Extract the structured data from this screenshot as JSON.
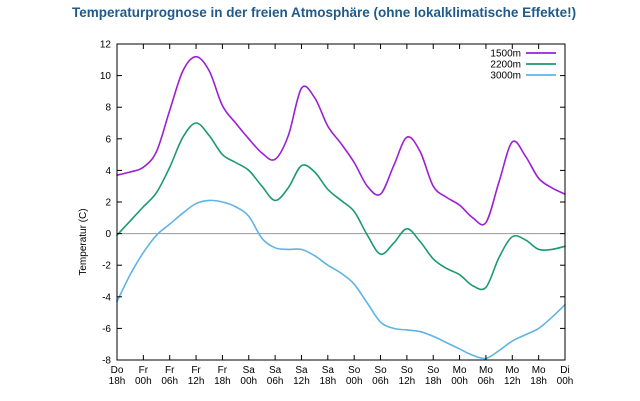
{
  "chart_data": {
    "type": "line",
    "title": "Temperaturprognose in der freien Atmosphäre (ohne lokalklimatische Effekte!)",
    "xlabel": "",
    "ylabel": "Temperatur (C)",
    "ylim": [
      -8,
      12
    ],
    "yticks": [
      -8,
      -6,
      -4,
      -2,
      0,
      2,
      4,
      6,
      8,
      10,
      12
    ],
    "grid": false,
    "legend_position": "top-right",
    "x_ticks": [
      {
        "day": "Do",
        "hour": "18h"
      },
      {
        "day": "Fr",
        "hour": "00h"
      },
      {
        "day": "Fr",
        "hour": "06h"
      },
      {
        "day": "Fr",
        "hour": "12h"
      },
      {
        "day": "Fr",
        "hour": "18h"
      },
      {
        "day": "Sa",
        "hour": "00h"
      },
      {
        "day": "Sa",
        "hour": "06h"
      },
      {
        "day": "Sa",
        "hour": "12h"
      },
      {
        "day": "Sa",
        "hour": "18h"
      },
      {
        "day": "So",
        "hour": "00h"
      },
      {
        "day": "So",
        "hour": "06h"
      },
      {
        "day": "So",
        "hour": "12h"
      },
      {
        "day": "So",
        "hour": "18h"
      },
      {
        "day": "Mo",
        "hour": "00h"
      },
      {
        "day": "Mo",
        "hour": "06h"
      },
      {
        "day": "Mo",
        "hour": "12h"
      },
      {
        "day": "Mo",
        "hour": "18h"
      },
      {
        "day": "Di",
        "hour": "00h"
      }
    ],
    "series": [
      {
        "name": "1500m",
        "color": "#9c1fd6",
        "values": [
          [
            0,
            3.7
          ],
          [
            0.5,
            3.9
          ],
          [
            1,
            4.2
          ],
          [
            1.5,
            5.2
          ],
          [
            2,
            7.8
          ],
          [
            2.5,
            10.3
          ],
          [
            3,
            11.2
          ],
          [
            3.5,
            10.3
          ],
          [
            4,
            8.1
          ],
          [
            4.5,
            7.0
          ],
          [
            5,
            6.0
          ],
          [
            5.5,
            5.1
          ],
          [
            6,
            4.7
          ],
          [
            6.5,
            6.2
          ],
          [
            7,
            9.2
          ],
          [
            7.5,
            8.6
          ],
          [
            8,
            6.8
          ],
          [
            8.5,
            5.7
          ],
          [
            9,
            4.5
          ],
          [
            9.5,
            3.0
          ],
          [
            10,
            2.5
          ],
          [
            10.5,
            4.3
          ],
          [
            11,
            6.1
          ],
          [
            11.5,
            5.2
          ],
          [
            12,
            3.0
          ],
          [
            12.5,
            2.3
          ],
          [
            13,
            1.8
          ],
          [
            13.5,
            1.0
          ],
          [
            14,
            0.7
          ],
          [
            14.5,
            3.3
          ],
          [
            15,
            5.8
          ],
          [
            15.5,
            4.9
          ],
          [
            16,
            3.5
          ],
          [
            16.5,
            2.9
          ],
          [
            17,
            2.5
          ]
        ]
      },
      {
        "name": "2200m",
        "color": "#1a9a6e",
        "values": [
          [
            0,
            -0.1
          ],
          [
            0.5,
            0.8
          ],
          [
            1,
            1.7
          ],
          [
            1.5,
            2.6
          ],
          [
            2,
            4.2
          ],
          [
            2.5,
            6.1
          ],
          [
            3,
            7.0
          ],
          [
            3.5,
            6.2
          ],
          [
            4,
            5.0
          ],
          [
            4.5,
            4.5
          ],
          [
            5,
            4.0
          ],
          [
            5.5,
            3.0
          ],
          [
            6,
            2.1
          ],
          [
            6.5,
            2.9
          ],
          [
            7,
            4.3
          ],
          [
            7.5,
            3.9
          ],
          [
            8,
            2.8
          ],
          [
            8.5,
            2.1
          ],
          [
            9,
            1.4
          ],
          [
            9.5,
            -0.1
          ],
          [
            10,
            -1.3
          ],
          [
            10.5,
            -0.6
          ],
          [
            11,
            0.3
          ],
          [
            11.5,
            -0.5
          ],
          [
            12,
            -1.6
          ],
          [
            12.5,
            -2.2
          ],
          [
            13,
            -2.6
          ],
          [
            13.5,
            -3.3
          ],
          [
            14,
            -3.4
          ],
          [
            14.5,
            -1.5
          ],
          [
            15,
            -0.2
          ],
          [
            15.5,
            -0.4
          ],
          [
            16,
            -1.0
          ],
          [
            16.5,
            -1.0
          ],
          [
            17,
            -0.8
          ]
        ]
      },
      {
        "name": "3000m",
        "color": "#5fb4e6",
        "values": [
          [
            0,
            -4.3
          ],
          [
            0.5,
            -2.6
          ],
          [
            1,
            -1.2
          ],
          [
            1.5,
            -0.1
          ],
          [
            2,
            0.6
          ],
          [
            2.5,
            1.3
          ],
          [
            3,
            1.9
          ],
          [
            3.5,
            2.1
          ],
          [
            4,
            2.0
          ],
          [
            4.5,
            1.7
          ],
          [
            5,
            1.1
          ],
          [
            5.5,
            -0.3
          ],
          [
            6,
            -0.9
          ],
          [
            6.5,
            -1.0
          ],
          [
            7,
            -1.0
          ],
          [
            7.5,
            -1.4
          ],
          [
            8,
            -2.0
          ],
          [
            8.5,
            -2.5
          ],
          [
            9,
            -3.2
          ],
          [
            9.5,
            -4.4
          ],
          [
            10,
            -5.6
          ],
          [
            10.5,
            -6.0
          ],
          [
            11,
            -6.1
          ],
          [
            11.5,
            -6.2
          ],
          [
            12,
            -6.5
          ],
          [
            12.5,
            -6.9
          ],
          [
            13,
            -7.3
          ],
          [
            13.5,
            -7.7
          ],
          [
            14,
            -7.9
          ],
          [
            14.5,
            -7.4
          ],
          [
            15,
            -6.8
          ],
          [
            15.5,
            -6.4
          ],
          [
            16,
            -6.0
          ],
          [
            16.5,
            -5.3
          ],
          [
            17,
            -4.5
          ]
        ]
      }
    ]
  }
}
